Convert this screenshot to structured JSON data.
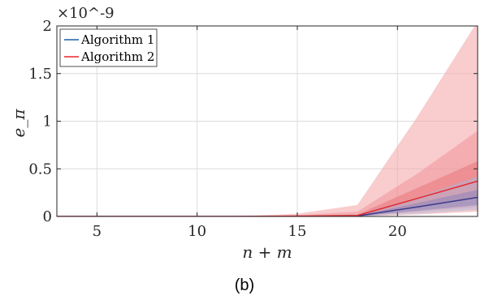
{
  "chart_data": {
    "type": "area",
    "caption": "(b)",
    "xlabel": "n + m",
    "ylabel": "e_π",
    "y_multiplier": "×10^-9",
    "xlim": [
      3,
      24
    ],
    "ylim": [
      0,
      2
    ],
    "xticks": [
      5,
      10,
      15,
      20
    ],
    "yticks": [
      0,
      0.5,
      1,
      1.5,
      2
    ],
    "ytick_labels": [
      "0",
      "0.5",
      "1",
      "1.5",
      "2"
    ],
    "grid": true,
    "legend_position": "top-left",
    "x": [
      3,
      6,
      9,
      12,
      15,
      18,
      21,
      24
    ],
    "series": [
      {
        "name": "Algorithm 1",
        "color": "#1f5fa8",
        "values": [
          0,
          0,
          0,
          0,
          0.002,
          0.005,
          0.1,
          0.2
        ],
        "band_inner": [
          [
            0,
            0
          ],
          [
            0,
            0
          ],
          [
            0,
            0
          ],
          [
            0,
            0
          ],
          [
            0,
            0.005
          ],
          [
            0,
            0.01
          ],
          [
            0.06,
            0.14
          ],
          [
            0.12,
            0.28
          ]
        ],
        "band_outer": [
          [
            0,
            0
          ],
          [
            0,
            0
          ],
          [
            0,
            0
          ],
          [
            0,
            0
          ],
          [
            0,
            0.01
          ],
          [
            0,
            0.02
          ],
          [
            0.03,
            0.2
          ],
          [
            0.07,
            0.42
          ]
        ]
      },
      {
        "name": "Algorithm 2",
        "color": "#e8262a",
        "values": [
          0,
          0,
          0,
          0,
          0.003,
          0.01,
          0.19,
          0.37
        ],
        "band_inner": [
          [
            0,
            0
          ],
          [
            0,
            0
          ],
          [
            0,
            0
          ],
          [
            0,
            0
          ],
          [
            0,
            0.008
          ],
          [
            0,
            0.02
          ],
          [
            0.1,
            0.3
          ],
          [
            0.2,
            0.58
          ]
        ],
        "band_outer": [
          [
            0,
            0
          ],
          [
            0,
            0
          ],
          [
            0,
            0
          ],
          [
            0,
            0
          ],
          [
            0,
            0.03
          ],
          [
            0,
            0.12
          ],
          [
            0.02,
            1.05
          ],
          [
            0.05,
            2.05
          ]
        ],
        "band_mid": [
          [
            0,
            0
          ],
          [
            0,
            0
          ],
          [
            0,
            0
          ],
          [
            0,
            0
          ],
          [
            0,
            0.015
          ],
          [
            0,
            0.05
          ],
          [
            0.05,
            0.45
          ],
          [
            0.1,
            0.9
          ]
        ]
      }
    ]
  }
}
